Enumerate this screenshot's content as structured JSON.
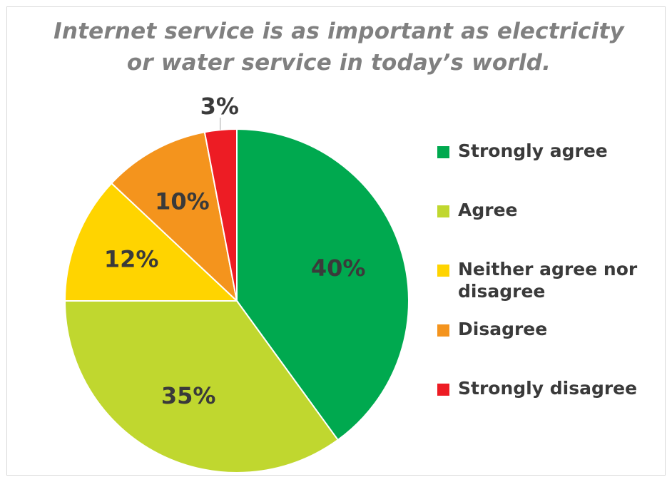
{
  "title_lines": [
    "Internet service is as important as electricity",
    "or water service in today’s world."
  ],
  "chart_data": {
    "type": "pie",
    "title": "Internet service is as important as electricity or water service in today’s world.",
    "categories": [
      "Strongly agree",
      "Agree",
      "Neither agree nor disagree",
      "Disagree",
      "Strongly disagree"
    ],
    "values": [
      40,
      35,
      12,
      10,
      3
    ],
    "data_labels": [
      "40%",
      "35%",
      "12%",
      "10%",
      "3%"
    ],
    "colors": [
      "#00a94f",
      "#c0d72f",
      "#ffd400",
      "#f4941d",
      "#ed1c24"
    ],
    "legend_position": "right",
    "start_angle": "12 o'clock",
    "direction": "clockwise"
  },
  "legend": {
    "items": [
      {
        "label": "Strongly agree",
        "color": "#00a94f"
      },
      {
        "label": "Agree",
        "color": "#c0d72f"
      },
      {
        "label": "Neither agree nor disagree",
        "color": "#ffd400"
      },
      {
        "label": "Disagree",
        "color": "#f4941d"
      },
      {
        "label": "Strongly disagree",
        "color": "#ed1c24"
      }
    ]
  }
}
